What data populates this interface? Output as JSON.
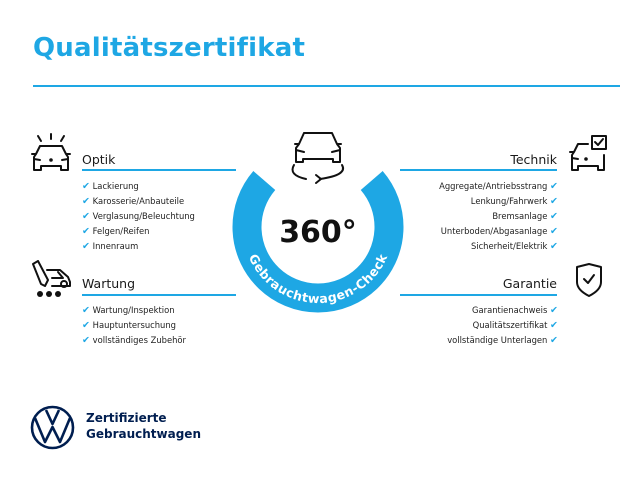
{
  "title": "Qualitätszertifikat",
  "center": {
    "number": "360°",
    "ring_text": "Gebrauchtwagen-Check",
    "ring_color": "#1ea7e4"
  },
  "sections": {
    "optik": {
      "label": "Optik",
      "icon": "car-lights-icon",
      "items": [
        "Lackierung",
        "Karosserie/Anbauteile",
        "Verglasung/Beleuchtung",
        "Felgen/Reifen",
        "Innenraum"
      ]
    },
    "wartung": {
      "label": "Wartung",
      "icon": "service-tools-icon",
      "items": [
        "Wartung/Inspektion",
        "Hauptuntersuchung",
        "vollständiges Zubehör"
      ]
    },
    "technik": {
      "label": "Technik",
      "icon": "car-checkbox-icon",
      "items": [
        "Aggregate/Antriebsstrang",
        "Lenkung/Fahrwerk",
        "Bremsanlage",
        "Unterboden/Abgasanlage",
        "Sicherheit/Elektrik"
      ]
    },
    "garantie": {
      "label": "Garantie",
      "icon": "shield-check-icon",
      "items": [
        "Garantienachweis",
        "Qualitätszertifikat",
        "vollständige Unterlagen"
      ]
    }
  },
  "check_glyph": "✔",
  "brand": {
    "line1": "Zertifizierte",
    "line2": "Gebrauchtwagen",
    "logo": "vw-logo",
    "color": "#001e50"
  },
  "accent": "#1ea7e4"
}
